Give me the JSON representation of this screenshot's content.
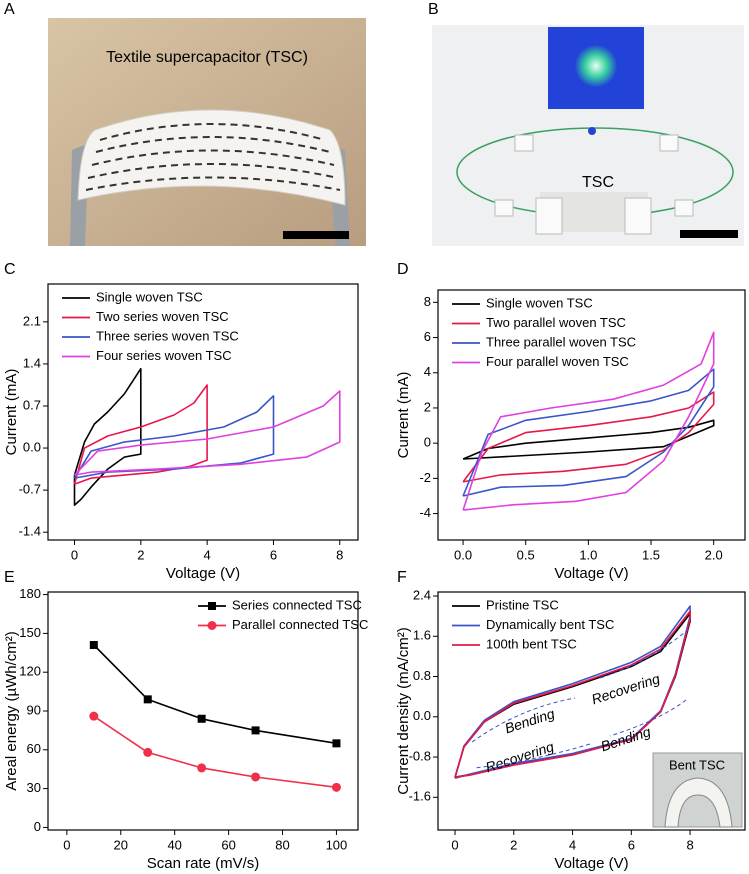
{
  "photos": [
    {
      "panel_label": "A",
      "caption": "Textile supercapacitor (TSC)"
    },
    {
      "panel_label": "B",
      "caption": "TSC"
    }
  ],
  "chart_data": [
    {
      "type": "line",
      "panel_label": "C",
      "xlabel": "Voltage (V)",
      "ylabel": "Current (mA)",
      "xlim": [
        -0.8,
        8.55
      ],
      "xticks": [
        0,
        2,
        4,
        6,
        8
      ],
      "ylim": [
        -1.53,
        2.73
      ],
      "yticks": [
        -1.4,
        -0.7,
        {
          "value": 0,
          "label": "0.0"
        },
        0.7,
        1.4,
        2.1
      ],
      "legend": "upper left",
      "series": [
        {
          "name": "Single woven TSC",
          "color": "#000000",
          "x": [
            0,
            0.3,
            0.6,
            1,
            1.5,
            2,
            2,
            1.5,
            1,
            0.5,
            0.2,
            0,
            0
          ],
          "values": [
            -0.45,
            0.1,
            0.4,
            0.6,
            0.9,
            1.32,
            -0.1,
            -0.15,
            -0.35,
            -0.65,
            -0.85,
            -0.95,
            -0.45
          ]
        },
        {
          "name": "Two series woven TSC",
          "color": "#e8174a",
          "x": [
            0,
            0.3,
            1,
            2,
            3,
            3.6,
            4,
            4,
            3.5,
            2.5,
            1.5,
            0.5,
            0
          ],
          "values": [
            -0.6,
            0,
            0.2,
            0.35,
            0.55,
            0.75,
            1.05,
            -0.2,
            -0.3,
            -0.4,
            -0.45,
            -0.5,
            -0.6
          ]
        },
        {
          "name": "Three series woven TSC",
          "color": "#3a55c8",
          "x": [
            0,
            0.5,
            1.5,
            3,
            4.5,
            5.5,
            6,
            6,
            5,
            3,
            1,
            0
          ],
          "values": [
            -0.5,
            -0.05,
            0.1,
            0.2,
            0.35,
            0.6,
            0.87,
            -0.1,
            -0.25,
            -0.35,
            -0.4,
            -0.5
          ]
        },
        {
          "name": "Four series woven TSC",
          "color": "#e040e0",
          "x": [
            0,
            0.7,
            2,
            4,
            6,
            7.5,
            8,
            8,
            7,
            5,
            2.5,
            0.5,
            0
          ],
          "values": [
            -0.45,
            -0.05,
            0.05,
            0.15,
            0.35,
            0.7,
            0.95,
            0.1,
            -0.15,
            -0.27,
            -0.35,
            -0.4,
            -0.45
          ]
        }
      ]
    },
    {
      "type": "line",
      "panel_label": "D",
      "xlabel": "Voltage (V)",
      "ylabel": "Current (mA)",
      "xlim": [
        -0.2,
        2.25
      ],
      "xticks": [
        {
          "value": 0,
          "label": "0.0"
        },
        0.5,
        {
          "value": 1,
          "label": "1.0"
        },
        1.5,
        {
          "value": 2,
          "label": "2.0"
        }
      ],
      "ylim": [
        -5.5,
        8.7
      ],
      "yticks": [
        -4,
        -2,
        0,
        2,
        4,
        6,
        8
      ],
      "legend": "upper left",
      "series": [
        {
          "name": "Single woven TSC",
          "color": "#000000",
          "x": [
            0,
            0.2,
            0.5,
            1,
            1.5,
            1.8,
            2,
            2,
            1.8,
            1.6,
            1,
            0.5,
            0
          ],
          "values": [
            -0.9,
            -0.3,
            0,
            0.3,
            0.6,
            0.9,
            1.3,
            1.0,
            0.4,
            -0.2,
            -0.5,
            -0.7,
            -0.9
          ]
        },
        {
          "name": "Two parallel woven TSC",
          "color": "#e8174a",
          "x": [
            0,
            0.2,
            0.5,
            1,
            1.5,
            1.8,
            2,
            2,
            1.8,
            1.6,
            1.3,
            0.8,
            0.3,
            0
          ],
          "values": [
            -2.2,
            -0.3,
            0.6,
            1,
            1.5,
            2,
            2.9,
            2.2,
            0.6,
            -0.4,
            -1.2,
            -1.6,
            -1.8,
            -2.2
          ]
        },
        {
          "name": "Three parallel woven TSC",
          "color": "#3a55c8",
          "x": [
            0,
            0.2,
            0.5,
            1,
            1.5,
            1.8,
            2,
            2,
            1.8,
            1.6,
            1.3,
            0.8,
            0.3,
            0
          ],
          "values": [
            -3,
            0.5,
            1.3,
            1.8,
            2.4,
            3,
            4.2,
            3.2,
            1,
            -0.5,
            -1.9,
            -2.4,
            -2.5,
            -3
          ]
        },
        {
          "name": "Four parallel woven TSC",
          "color": "#e040e0",
          "x": [
            0,
            0.15,
            0.3,
            0.7,
            1.2,
            1.6,
            1.9,
            2,
            2,
            1.8,
            1.6,
            1.3,
            0.9,
            0.4,
            0
          ],
          "values": [
            -3.8,
            -0.5,
            1.5,
            2,
            2.5,
            3.3,
            4.5,
            6.3,
            4.5,
            1.5,
            -1,
            -2.8,
            -3.3,
            -3.5,
            -3.8
          ]
        }
      ]
    },
    {
      "type": "line",
      "panel_label": "E",
      "xlabel": "Scan rate (mV/s)",
      "ylabel": "Areal energy (µWh/cm²)",
      "xlim": [
        -7,
        108
      ],
      "xticks": [
        0,
        20,
        40,
        60,
        80,
        100
      ],
      "ylim": [
        -2,
        182
      ],
      "yticks": [
        0,
        30,
        60,
        90,
        120,
        150,
        180
      ],
      "legend": "upper right",
      "x": [
        10,
        30,
        50,
        70,
        100
      ],
      "series": [
        {
          "name": "Series connected TSC",
          "color": "#000000",
          "marker": "square",
          "values": [
            141,
            99,
            84,
            75,
            65
          ]
        },
        {
          "name": "Parallel connected TSC",
          "color": "#f0304a",
          "marker": "circle",
          "values": [
            86,
            58,
            46,
            39,
            31
          ]
        }
      ]
    },
    {
      "type": "line",
      "panel_label": "F",
      "xlabel": "Voltage (V)",
      "ylabel": "Current density (mA/cm²)",
      "xlim": [
        -0.58,
        9.87
      ],
      "xticks": [
        0,
        2,
        4,
        6,
        8
      ],
      "ylim": [
        -2.25,
        2.48
      ],
      "yticks": [
        -1.6,
        -0.8,
        {
          "value": 0,
          "label": "0.0"
        },
        0.8,
        1.6,
        2.4
      ],
      "legend": "upper left",
      "annotations": [
        "Bending",
        "Recovering",
        "Recovering",
        "Bending"
      ],
      "inset_label": "Bent TSC",
      "series": [
        {
          "name": "Pristine TSC",
          "color": "#000000",
          "x": [
            0,
            0.3,
            1,
            2,
            4,
            6,
            7,
            8,
            8,
            7.5,
            7,
            6,
            4,
            2,
            0.5,
            0
          ],
          "values": [
            -1.2,
            -0.6,
            -0.1,
            0.25,
            0.6,
            1.0,
            1.3,
            2.05,
            1.9,
            0.8,
            0.1,
            -0.45,
            -0.75,
            -0.95,
            -1.15,
            -1.2
          ]
        },
        {
          "name": "Dynamically bent TSC",
          "color": "#3a55c8",
          "x": [
            0,
            0.3,
            1,
            2,
            4,
            6,
            7,
            8,
            8,
            7.5,
            7,
            6,
            4,
            2,
            0.5,
            0
          ],
          "values": [
            -1.22,
            -0.58,
            -0.07,
            0.3,
            0.66,
            1.08,
            1.4,
            2.2,
            2.0,
            0.85,
            0.12,
            -0.43,
            -0.73,
            -0.93,
            -1.14,
            -1.22
          ]
        },
        {
          "name": "100th bent TSC",
          "color": "#e8174a",
          "x": [
            0,
            0.3,
            1,
            2,
            4,
            6,
            7,
            8,
            8,
            7.5,
            7,
            6,
            4,
            2,
            0.5,
            0
          ],
          "values": [
            -1.2,
            -0.6,
            -0.1,
            0.27,
            0.62,
            1.03,
            1.35,
            2.1,
            1.95,
            0.82,
            0.1,
            -0.45,
            -0.76,
            -0.96,
            -1.16,
            -1.2
          ]
        }
      ]
    }
  ]
}
